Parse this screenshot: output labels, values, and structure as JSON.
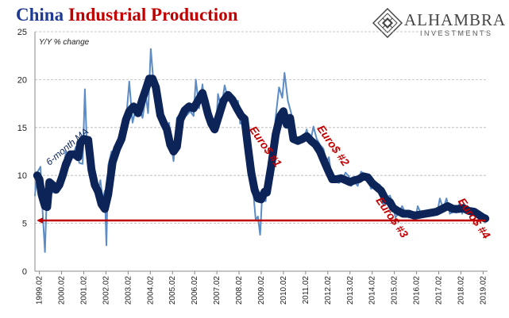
{
  "title": {
    "part1": "China ",
    "part2": "Industrial Production"
  },
  "brand": {
    "name": "ALHAMBRA",
    "sub": "INVESTMENTS"
  },
  "colors": {
    "raw_series": "#5b8cc8",
    "ma_series": "#0d2459",
    "reference_line": "#c00000",
    "annotation": "#c00000",
    "ma_annotation": "#0d2459"
  },
  "chart_data": {
    "type": "line",
    "ylabel": "Y/Y % change",
    "ylim": [
      0,
      25
    ],
    "yticks": [
      0,
      5,
      10,
      15,
      20,
      25
    ],
    "xlim": [
      1998.9,
      2019.3
    ],
    "xticks": [
      {
        "t": 1999.1,
        "label": "1999.02"
      },
      {
        "t": 2000.1,
        "label": "2000.02"
      },
      {
        "t": 2001.1,
        "label": "2001.02"
      },
      {
        "t": 2002.1,
        "label": "2002.02"
      },
      {
        "t": 2003.1,
        "label": "2003.02"
      },
      {
        "t": 2004.1,
        "label": "2004.02"
      },
      {
        "t": 2005.1,
        "label": "2005.02"
      },
      {
        "t": 2006.1,
        "label": "2006.02"
      },
      {
        "t": 2007.1,
        "label": "2007.02"
      },
      {
        "t": 2008.1,
        "label": "2008.02"
      },
      {
        "t": 2009.1,
        "label": "2009.02"
      },
      {
        "t": 2010.1,
        "label": "2010.02"
      },
      {
        "t": 2011.1,
        "label": "2011.02"
      },
      {
        "t": 2012.1,
        "label": "2012.02"
      },
      {
        "t": 2013.1,
        "label": "2013.02"
      },
      {
        "t": 2014.1,
        "label": "2014.02"
      },
      {
        "t": 2015.1,
        "label": "2015.02"
      },
      {
        "t": 2016.1,
        "label": "2016.02"
      },
      {
        "t": 2017.1,
        "label": "2017.02"
      },
      {
        "t": 2018.1,
        "label": "2018.02"
      },
      {
        "t": 2019.1,
        "label": "2019.02"
      }
    ],
    "grid": true,
    "series": [
      {
        "name": "",
        "points": [
          [
            1998.9,
            7.9
          ],
          [
            1999.0,
            10.3
          ],
          [
            1999.15,
            10.9
          ],
          [
            1999.25,
            6.0
          ],
          [
            1999.35,
            2.0
          ],
          [
            1999.45,
            9.1
          ],
          [
            1999.55,
            8.5
          ],
          [
            1999.7,
            8.2
          ],
          [
            1999.85,
            9.0
          ],
          [
            2000.0,
            8.5
          ],
          [
            2000.15,
            10.5
          ],
          [
            2000.3,
            12.5
          ],
          [
            2000.45,
            11.0
          ],
          [
            2000.6,
            12.1
          ],
          [
            2000.75,
            13.0
          ],
          [
            2000.9,
            11.3
          ],
          [
            2001.05,
            11.2
          ],
          [
            2001.15,
            19.0
          ],
          [
            2001.25,
            12.4
          ],
          [
            2001.4,
            11.9
          ],
          [
            2001.55,
            9.2
          ],
          [
            2001.7,
            8.0
          ],
          [
            2001.85,
            9.5
          ],
          [
            2001.95,
            7.5
          ],
          [
            2002.05,
            8.4
          ],
          [
            2002.12,
            2.7
          ],
          [
            2002.2,
            11.0
          ],
          [
            2002.35,
            12.5
          ],
          [
            2002.5,
            12.3
          ],
          [
            2002.65,
            13.1
          ],
          [
            2002.8,
            14.0
          ],
          [
            2002.95,
            14.6
          ],
          [
            2003.05,
            17.0
          ],
          [
            2003.15,
            19.8
          ],
          [
            2003.3,
            15.5
          ],
          [
            2003.45,
            17.0
          ],
          [
            2003.6,
            17.1
          ],
          [
            2003.75,
            16.0
          ],
          [
            2003.9,
            18.3
          ],
          [
            2004.0,
            16.5
          ],
          [
            2004.12,
            23.2
          ],
          [
            2004.25,
            19.5
          ],
          [
            2004.4,
            18.0
          ],
          [
            2004.55,
            15.8
          ],
          [
            2004.7,
            15.6
          ],
          [
            2004.85,
            14.5
          ],
          [
            2004.95,
            15.5
          ],
          [
            2005.05,
            13.0
          ],
          [
            2005.15,
            11.5
          ],
          [
            2005.3,
            16.0
          ],
          [
            2005.45,
            16.4
          ],
          [
            2005.6,
            16.0
          ],
          [
            2005.75,
            16.3
          ],
          [
            2005.9,
            16.7
          ],
          [
            2006.05,
            16.2
          ],
          [
            2006.15,
            20.0
          ],
          [
            2006.3,
            17.0
          ],
          [
            2006.45,
            19.5
          ],
          [
            2006.6,
            16.0
          ],
          [
            2006.75,
            16.0
          ],
          [
            2006.9,
            15.0
          ],
          [
            2007.05,
            14.6
          ],
          [
            2007.15,
            18.5
          ],
          [
            2007.3,
            17.0
          ],
          [
            2007.45,
            19.4
          ],
          [
            2007.6,
            18.0
          ],
          [
            2007.75,
            17.6
          ],
          [
            2007.9,
            17.4
          ],
          [
            2008.05,
            17.8
          ],
          [
            2008.15,
            15.4
          ],
          [
            2008.3,
            15.6
          ],
          [
            2008.45,
            16.0
          ],
          [
            2008.6,
            12.8
          ],
          [
            2008.75,
            8.0
          ],
          [
            2008.85,
            5.4
          ],
          [
            2008.95,
            5.7
          ],
          [
            2009.05,
            3.8
          ],
          [
            2009.15,
            8.3
          ],
          [
            2009.3,
            7.3
          ],
          [
            2009.45,
            10.7
          ],
          [
            2009.6,
            12.3
          ],
          [
            2009.75,
            16.1
          ],
          [
            2009.9,
            19.2
          ],
          [
            2010.05,
            18.1
          ],
          [
            2010.15,
            20.7
          ],
          [
            2010.3,
            17.8
          ],
          [
            2010.45,
            16.5
          ],
          [
            2010.6,
            13.4
          ],
          [
            2010.75,
            13.9
          ],
          [
            2010.9,
            13.5
          ],
          [
            2011.05,
            14.1
          ],
          [
            2011.15,
            14.8
          ],
          [
            2011.3,
            13.3
          ],
          [
            2011.45,
            15.1
          ],
          [
            2011.6,
            13.8
          ],
          [
            2011.75,
            13.2
          ],
          [
            2011.9,
            12.8
          ],
          [
            2012.05,
            11.4
          ],
          [
            2012.15,
            11.9
          ],
          [
            2012.3,
            9.3
          ],
          [
            2012.45,
            9.5
          ],
          [
            2012.6,
            9.2
          ],
          [
            2012.75,
            9.6
          ],
          [
            2012.9,
            10.3
          ],
          [
            2013.05,
            9.9
          ],
          [
            2013.15,
            8.9
          ],
          [
            2013.3,
            9.3
          ],
          [
            2013.45,
            8.9
          ],
          [
            2013.6,
            10.4
          ],
          [
            2013.75,
            10.1
          ],
          [
            2013.9,
            9.7
          ],
          [
            2014.05,
            8.6
          ],
          [
            2014.15,
            8.8
          ],
          [
            2014.3,
            9.2
          ],
          [
            2014.45,
            9.0
          ],
          [
            2014.6,
            6.9
          ],
          [
            2014.75,
            7.7
          ],
          [
            2014.9,
            7.9
          ],
          [
            2015.05,
            6.8
          ],
          [
            2015.15,
            5.6
          ],
          [
            2015.3,
            6.1
          ],
          [
            2015.45,
            6.8
          ],
          [
            2015.6,
            6.1
          ],
          [
            2015.75,
            5.6
          ],
          [
            2015.9,
            6.2
          ],
          [
            2016.05,
            5.4
          ],
          [
            2016.15,
            6.8
          ],
          [
            2016.3,
            6.0
          ],
          [
            2016.45,
            6.2
          ],
          [
            2016.6,
            6.1
          ],
          [
            2016.75,
            6.3
          ],
          [
            2016.9,
            6.0
          ],
          [
            2017.05,
            6.3
          ],
          [
            2017.15,
            7.6
          ],
          [
            2017.3,
            6.5
          ],
          [
            2017.45,
            7.6
          ],
          [
            2017.6,
            6.0
          ],
          [
            2017.75,
            6.2
          ],
          [
            2017.9,
            6.1
          ],
          [
            2018.05,
            7.2
          ],
          [
            2018.15,
            6.0
          ],
          [
            2018.3,
            6.8
          ],
          [
            2018.45,
            6.0
          ],
          [
            2018.6,
            6.1
          ],
          [
            2018.75,
            5.8
          ],
          [
            2018.9,
            5.7
          ],
          [
            2019.05,
            5.5
          ],
          [
            2019.15,
            5.3
          ]
        ]
      },
      {
        "name": "6-month MA",
        "points": [
          [
            1999.0,
            10.0
          ],
          [
            1999.1,
            9.6
          ],
          [
            1999.2,
            8.0
          ],
          [
            1999.35,
            6.8
          ],
          [
            1999.45,
            6.7
          ],
          [
            1999.55,
            9.3
          ],
          [
            1999.7,
            9.0
          ],
          [
            1999.85,
            8.5
          ],
          [
            2000.0,
            9.0
          ],
          [
            2000.15,
            10.0
          ],
          [
            2000.3,
            11.2
          ],
          [
            2000.5,
            12.2
          ],
          [
            2000.7,
            12.2
          ],
          [
            2000.85,
            11.9
          ],
          [
            2000.95,
            13.4
          ],
          [
            2001.1,
            13.8
          ],
          [
            2001.3,
            13.7
          ],
          [
            2001.45,
            10.6
          ],
          [
            2001.6,
            9.0
          ],
          [
            2001.75,
            8.3
          ],
          [
            2001.9,
            7.0
          ],
          [
            2002.05,
            6.5
          ],
          [
            2002.2,
            8.0
          ],
          [
            2002.4,
            11.4
          ],
          [
            2002.6,
            12.8
          ],
          [
            2002.8,
            13.8
          ],
          [
            2003.0,
            15.8
          ],
          [
            2003.15,
            16.7
          ],
          [
            2003.35,
            17.2
          ],
          [
            2003.55,
            16.5
          ],
          [
            2003.75,
            18.0
          ],
          [
            2003.9,
            19.0
          ],
          [
            2004.05,
            20.1
          ],
          [
            2004.2,
            20.1
          ],
          [
            2004.35,
            19.2
          ],
          [
            2004.55,
            16.3
          ],
          [
            2004.7,
            15.5
          ],
          [
            2004.85,
            14.8
          ],
          [
            2005.0,
            13.2
          ],
          [
            2005.15,
            12.5
          ],
          [
            2005.3,
            13.0
          ],
          [
            2005.45,
            15.8
          ],
          [
            2005.65,
            16.8
          ],
          [
            2005.85,
            17.2
          ],
          [
            2006.05,
            17.0
          ],
          [
            2006.25,
            17.8
          ],
          [
            2006.45,
            18.6
          ],
          [
            2006.55,
            17.8
          ],
          [
            2006.7,
            16.4
          ],
          [
            2006.85,
            15.4
          ],
          [
            2007.0,
            14.8
          ],
          [
            2007.2,
            16.3
          ],
          [
            2007.4,
            17.8
          ],
          [
            2007.6,
            18.4
          ],
          [
            2007.8,
            17.9
          ],
          [
            2008.0,
            17.0
          ],
          [
            2008.2,
            16.2
          ],
          [
            2008.35,
            15.9
          ],
          [
            2008.5,
            13.0
          ],
          [
            2008.65,
            10.3
          ],
          [
            2008.8,
            8.5
          ],
          [
            2008.95,
            7.6
          ],
          [
            2009.1,
            7.5
          ],
          [
            2009.25,
            8.3
          ],
          [
            2009.35,
            8.2
          ],
          [
            2009.55,
            11.0
          ],
          [
            2009.75,
            14.3
          ],
          [
            2009.95,
            16.2
          ],
          [
            2010.1,
            16.7
          ],
          [
            2010.25,
            15.3
          ],
          [
            2010.4,
            16.0
          ],
          [
            2010.55,
            13.8
          ],
          [
            2010.75,
            13.6
          ],
          [
            2010.95,
            13.8
          ],
          [
            2011.15,
            14.1
          ],
          [
            2011.35,
            13.6
          ],
          [
            2011.55,
            13.2
          ],
          [
            2011.75,
            12.5
          ],
          [
            2011.95,
            11.4
          ],
          [
            2012.1,
            10.6
          ],
          [
            2012.3,
            9.6
          ],
          [
            2012.5,
            9.6
          ],
          [
            2012.7,
            9.7
          ],
          [
            2012.9,
            9.5
          ],
          [
            2013.1,
            9.3
          ],
          [
            2013.3,
            9.5
          ],
          [
            2013.5,
            9.6
          ],
          [
            2013.7,
            9.9
          ],
          [
            2013.9,
            9.8
          ],
          [
            2014.1,
            9.2
          ],
          [
            2014.3,
            8.8
          ],
          [
            2014.5,
            8.4
          ],
          [
            2014.7,
            7.5
          ],
          [
            2014.9,
            7.2
          ],
          [
            2015.05,
            6.6
          ],
          [
            2015.25,
            6.3
          ],
          [
            2015.5,
            6.0
          ],
          [
            2015.75,
            6.0
          ],
          [
            2016.0,
            5.8
          ],
          [
            2016.25,
            5.9
          ],
          [
            2016.5,
            6.0
          ],
          [
            2016.75,
            6.1
          ],
          [
            2017.0,
            6.2
          ],
          [
            2017.25,
            6.5
          ],
          [
            2017.5,
            6.8
          ],
          [
            2017.75,
            6.5
          ],
          [
            2018.0,
            6.5
          ],
          [
            2018.2,
            6.6
          ],
          [
            2018.45,
            6.3
          ],
          [
            2018.7,
            6.2
          ],
          [
            2018.9,
            5.9
          ],
          [
            2019.1,
            5.6
          ],
          [
            2019.2,
            5.5
          ]
        ]
      }
    ],
    "reference_line": {
      "y": 5.3,
      "t_from": 2019.2,
      "t_to": 1999.05
    },
    "annotations": [
      {
        "text": "6-month MA",
        "t": 1999.55,
        "y": 11.0,
        "angle": -40
      },
      {
        "text": "Euro$ #1",
        "t": 2008.55,
        "y": 14.8,
        "angle": 55
      },
      {
        "text": "Euro$ #2",
        "t": 2011.6,
        "y": 14.9,
        "angle": 55
      },
      {
        "text": "Euro$ #3",
        "t": 2014.25,
        "y": 7.4,
        "angle": 55
      },
      {
        "text": "Euro$ #4",
        "t": 2017.95,
        "y": 7.3,
        "angle": 55
      }
    ]
  }
}
